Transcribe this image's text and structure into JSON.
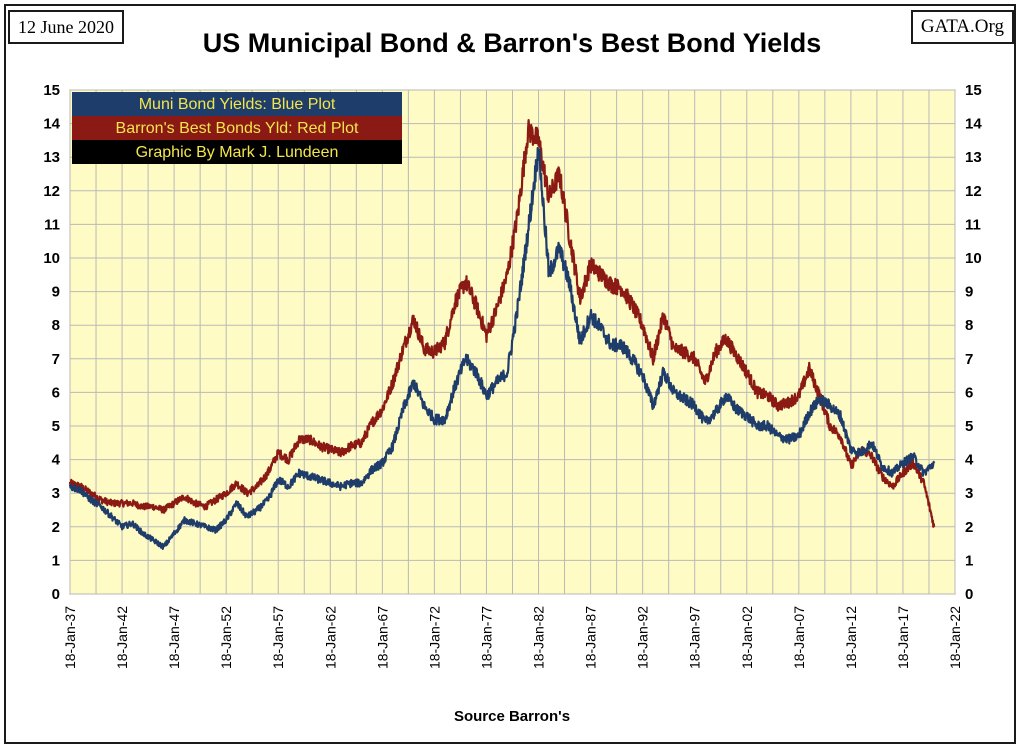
{
  "header": {
    "date": "12 June 2020",
    "site": "GATA.Org",
    "title": "US Municipal Bond & Barron's Best Bond Yields",
    "source": "Source Barron's"
  },
  "legend": [
    {
      "label": "Muni Bond Yields: Blue Plot",
      "bg": "#1f3d6b"
    },
    {
      "label": "Barron's Best Bonds Yld: Red Plot",
      "bg": "#8b1a14"
    },
    {
      "label": "Graphic By Mark J. Lundeen",
      "bg": "#000000"
    }
  ],
  "chart_data": {
    "type": "line",
    "title": "US Municipal Bond & Barron's Best Bond Yields",
    "xlabel": "Source Barron's",
    "ylabel": "",
    "ylim": [
      0,
      15
    ],
    "xlim": [
      1937,
      2022
    ],
    "yticks": [
      "0",
      "1",
      "2",
      "3",
      "4",
      "5",
      "6",
      "7",
      "8",
      "9",
      "10",
      "11",
      "12",
      "13",
      "14",
      "15"
    ],
    "xticks": [
      "18-Jan-37",
      "18-Jan-42",
      "18-Jan-47",
      "18-Jan-52",
      "18-Jan-57",
      "18-Jan-62",
      "18-Jan-67",
      "18-Jan-72",
      "18-Jan-77",
      "18-Jan-82",
      "18-Jan-87",
      "18-Jan-92",
      "18-Jan-97",
      "18-Jan-02",
      "18-Jan-07",
      "18-Jan-12",
      "18-Jan-17",
      "18-Jan-22"
    ],
    "grid": true,
    "plot_bg": "#fffbc4",
    "series": [
      {
        "name": "Muni Bond Yields: Blue Plot",
        "color": "#1f3d6b",
        "points": [
          [
            1937,
            3.2
          ],
          [
            1938,
            3.1
          ],
          [
            1939,
            2.8
          ],
          [
            1940,
            2.6
          ],
          [
            1941,
            2.3
          ],
          [
            1942,
            2.0
          ],
          [
            1943,
            2.1
          ],
          [
            1944,
            1.8
          ],
          [
            1945,
            1.6
          ],
          [
            1946,
            1.4
          ],
          [
            1947,
            1.8
          ],
          [
            1948,
            2.2
          ],
          [
            1949,
            2.1
          ],
          [
            1950,
            2.0
          ],
          [
            1951,
            1.9
          ],
          [
            1952,
            2.2
          ],
          [
            1953,
            2.7
          ],
          [
            1954,
            2.3
          ],
          [
            1955,
            2.5
          ],
          [
            1956,
            2.8
          ],
          [
            1957,
            3.4
          ],
          [
            1958,
            3.2
          ],
          [
            1959,
            3.6
          ],
          [
            1960,
            3.5
          ],
          [
            1961,
            3.4
          ],
          [
            1962,
            3.3
          ],
          [
            1963,
            3.2
          ],
          [
            1964,
            3.3
          ],
          [
            1965,
            3.3
          ],
          [
            1966,
            3.7
          ],
          [
            1967,
            3.9
          ],
          [
            1968,
            4.4
          ],
          [
            1969,
            5.5
          ],
          [
            1970,
            6.3
          ],
          [
            1971,
            5.6
          ],
          [
            1972,
            5.2
          ],
          [
            1973,
            5.2
          ],
          [
            1974,
            6.2
          ],
          [
            1975,
            7.0
          ],
          [
            1976,
            6.6
          ],
          [
            1977,
            5.9
          ],
          [
            1978,
            6.3
          ],
          [
            1979,
            6.6
          ],
          [
            1980,
            8.5
          ],
          [
            1981,
            10.8
          ],
          [
            1982,
            13.3
          ],
          [
            1983,
            9.5
          ],
          [
            1984,
            10.3
          ],
          [
            1985,
            9.2
          ],
          [
            1986,
            7.5
          ],
          [
            1987,
            8.3
          ],
          [
            1988,
            7.9
          ],
          [
            1989,
            7.4
          ],
          [
            1990,
            7.4
          ],
          [
            1991,
            7.0
          ],
          [
            1992,
            6.5
          ],
          [
            1993,
            5.6
          ],
          [
            1994,
            6.6
          ],
          [
            1995,
            6.0
          ],
          [
            1996,
            5.8
          ],
          [
            1997,
            5.6
          ],
          [
            1998,
            5.1
          ],
          [
            1999,
            5.4
          ],
          [
            2000,
            5.9
          ],
          [
            2001,
            5.5
          ],
          [
            2002,
            5.3
          ],
          [
            2003,
            5.0
          ],
          [
            2004,
            5.0
          ],
          [
            2005,
            4.7
          ],
          [
            2006,
            4.6
          ],
          [
            2007,
            4.7
          ],
          [
            2008,
            5.4
          ],
          [
            2009,
            5.8
          ],
          [
            2010,
            5.6
          ],
          [
            2011,
            5.3
          ],
          [
            2012,
            4.3
          ],
          [
            2013,
            4.2
          ],
          [
            2014,
            4.5
          ],
          [
            2015,
            3.8
          ],
          [
            2016,
            3.6
          ],
          [
            2017,
            3.9
          ],
          [
            2018,
            4.1
          ],
          [
            2019,
            3.6
          ],
          [
            2020,
            3.9
          ]
        ]
      },
      {
        "name": "Barron's Best Bonds Yld: Red Plot",
        "color": "#8b1a14",
        "points": [
          [
            1937,
            3.3
          ],
          [
            1938,
            3.2
          ],
          [
            1939,
            3.0
          ],
          [
            1940,
            2.8
          ],
          [
            1941,
            2.7
          ],
          [
            1942,
            2.7
          ],
          [
            1943,
            2.7
          ],
          [
            1944,
            2.6
          ],
          [
            1945,
            2.6
          ],
          [
            1946,
            2.5
          ],
          [
            1947,
            2.7
          ],
          [
            1948,
            2.9
          ],
          [
            1949,
            2.7
          ],
          [
            1950,
            2.6
          ],
          [
            1951,
            2.8
          ],
          [
            1952,
            3.0
          ],
          [
            1953,
            3.3
          ],
          [
            1954,
            3.0
          ],
          [
            1955,
            3.2
          ],
          [
            1956,
            3.6
          ],
          [
            1957,
            4.2
          ],
          [
            1958,
            4.0
          ],
          [
            1959,
            4.6
          ],
          [
            1960,
            4.6
          ],
          [
            1961,
            4.4
          ],
          [
            1962,
            4.3
          ],
          [
            1963,
            4.2
          ],
          [
            1964,
            4.4
          ],
          [
            1965,
            4.5
          ],
          [
            1966,
            5.1
          ],
          [
            1967,
            5.5
          ],
          [
            1968,
            6.3
          ],
          [
            1969,
            7.3
          ],
          [
            1970,
            8.2
          ],
          [
            1971,
            7.3
          ],
          [
            1972,
            7.2
          ],
          [
            1973,
            7.5
          ],
          [
            1974,
            8.7
          ],
          [
            1975,
            9.3
          ],
          [
            1976,
            8.6
          ],
          [
            1977,
            7.7
          ],
          [
            1978,
            8.5
          ],
          [
            1979,
            9.5
          ],
          [
            1980,
            11.3
          ],
          [
            1981,
            13.8
          ],
          [
            1982,
            13.5
          ],
          [
            1983,
            11.8
          ],
          [
            1984,
            12.5
          ],
          [
            1985,
            10.6
          ],
          [
            1986,
            8.8
          ],
          [
            1987,
            9.8
          ],
          [
            1988,
            9.5
          ],
          [
            1989,
            9.2
          ],
          [
            1990,
            9.1
          ],
          [
            1991,
            8.6
          ],
          [
            1992,
            8.0
          ],
          [
            1993,
            7.0
          ],
          [
            1994,
            8.3
          ],
          [
            1995,
            7.3
          ],
          [
            1996,
            7.2
          ],
          [
            1997,
            7.0
          ],
          [
            1998,
            6.3
          ],
          [
            1999,
            7.2
          ],
          [
            2000,
            7.6
          ],
          [
            2001,
            7.1
          ],
          [
            2002,
            6.6
          ],
          [
            2003,
            6.0
          ],
          [
            2004,
            5.9
          ],
          [
            2005,
            5.6
          ],
          [
            2006,
            5.7
          ],
          [
            2007,
            5.9
          ],
          [
            2008,
            6.7
          ],
          [
            2009,
            5.9
          ],
          [
            2010,
            5.0
          ],
          [
            2011,
            4.7
          ],
          [
            2012,
            3.8
          ],
          [
            2013,
            4.3
          ],
          [
            2014,
            4.1
          ],
          [
            2015,
            3.5
          ],
          [
            2016,
            3.2
          ],
          [
            2017,
            3.6
          ],
          [
            2018,
            3.9
          ],
          [
            2019,
            3.3
          ],
          [
            2020,
            2.0
          ]
        ]
      }
    ]
  }
}
